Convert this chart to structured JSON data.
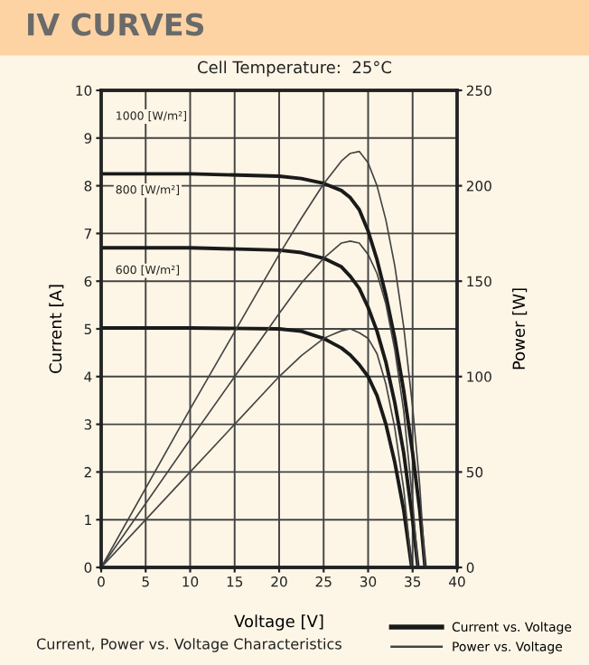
{
  "chart_data": {
    "type": "line",
    "title": "IV CURVES",
    "subtitle": "Cell Temperature:  25°C",
    "xlabel": "Voltage [V]",
    "ylabel": "Current [A]",
    "y2label": "Power [W]",
    "xlim": [
      0,
      40
    ],
    "xticks": [
      0,
      5,
      10,
      15,
      20,
      25,
      30,
      35,
      40
    ],
    "ylim": [
      0,
      10
    ],
    "yticks": [
      0,
      1,
      2,
      3,
      4,
      5,
      6,
      7,
      8,
      9,
      10
    ],
    "y2lim": [
      0,
      250
    ],
    "y2ticks": [
      0,
      50,
      100,
      150,
      200,
      250
    ],
    "grid": true,
    "legend": "bottom right",
    "annotations": [
      "1000 [W/m²]",
      "800 [W/m²]",
      "600 [W/m²]",
      "Current, Power vs. Voltage Characteristics"
    ],
    "series": [
      {
        "name": "Current vs. Voltage",
        "color": "#1a1a1a",
        "x": [
          0,
          10,
          20,
          22.5,
          25,
          27,
          28,
          29,
          30,
          31,
          32,
          33,
          34,
          35,
          35.8,
          36.4
        ],
        "values": [
          8.25,
          8.25,
          8.2,
          8.15,
          8.05,
          7.9,
          7.75,
          7.5,
          7.05,
          6.45,
          5.7,
          4.8,
          3.7,
          2.4,
          1.2,
          0
        ]
      },
      {
        "color": "#1a1a1a",
        "x": [
          0,
          10,
          20,
          22.5,
          25,
          27,
          28,
          29,
          30,
          31,
          32,
          33,
          34,
          35,
          35.6
        ],
        "values": [
          6.7,
          6.7,
          6.65,
          6.6,
          6.48,
          6.3,
          6.1,
          5.85,
          5.45,
          4.95,
          4.3,
          3.45,
          2.4,
          1.0,
          0
        ]
      },
      {
        "color": "#1a1a1a",
        "x": [
          0,
          10,
          20,
          22.5,
          25,
          26,
          27,
          28,
          29,
          30,
          31,
          32,
          33,
          34,
          34.9
        ],
        "values": [
          5.02,
          5.02,
          5.0,
          4.95,
          4.8,
          4.7,
          4.6,
          4.45,
          4.25,
          4.0,
          3.6,
          3.0,
          2.2,
          1.2,
          0
        ]
      },
      {
        "name": "Power vs. Voltage",
        "color": "#444444",
        "axis": "y2",
        "x": [
          0,
          10,
          20,
          22.5,
          25,
          27,
          28,
          29,
          30,
          31,
          32,
          33,
          34,
          35,
          35.8,
          36.4
        ],
        "values": [
          0,
          83,
          164,
          183,
          201,
          213,
          217,
          218,
          212,
          200,
          182,
          158,
          126,
          84,
          43,
          0
        ]
      },
      {
        "color": "#444444",
        "axis": "y2",
        "x": [
          0,
          10,
          20,
          22.5,
          25,
          27,
          28,
          29,
          30,
          31,
          32,
          33,
          34,
          35,
          35.6
        ],
        "values": [
          0,
          67,
          133,
          149,
          162,
          170,
          171,
          170,
          164,
          154,
          138,
          114,
          82,
          35,
          0
        ]
      },
      {
        "color": "#444444",
        "axis": "y2",
        "x": [
          0,
          10,
          20,
          22.5,
          25,
          26,
          27,
          28,
          29,
          30,
          31,
          32,
          33,
          34,
          34.9
        ],
        "values": [
          0,
          50,
          100,
          111,
          120,
          122,
          124,
          125,
          123,
          120,
          112,
          96,
          73,
          41,
          0
        ]
      }
    ]
  }
}
